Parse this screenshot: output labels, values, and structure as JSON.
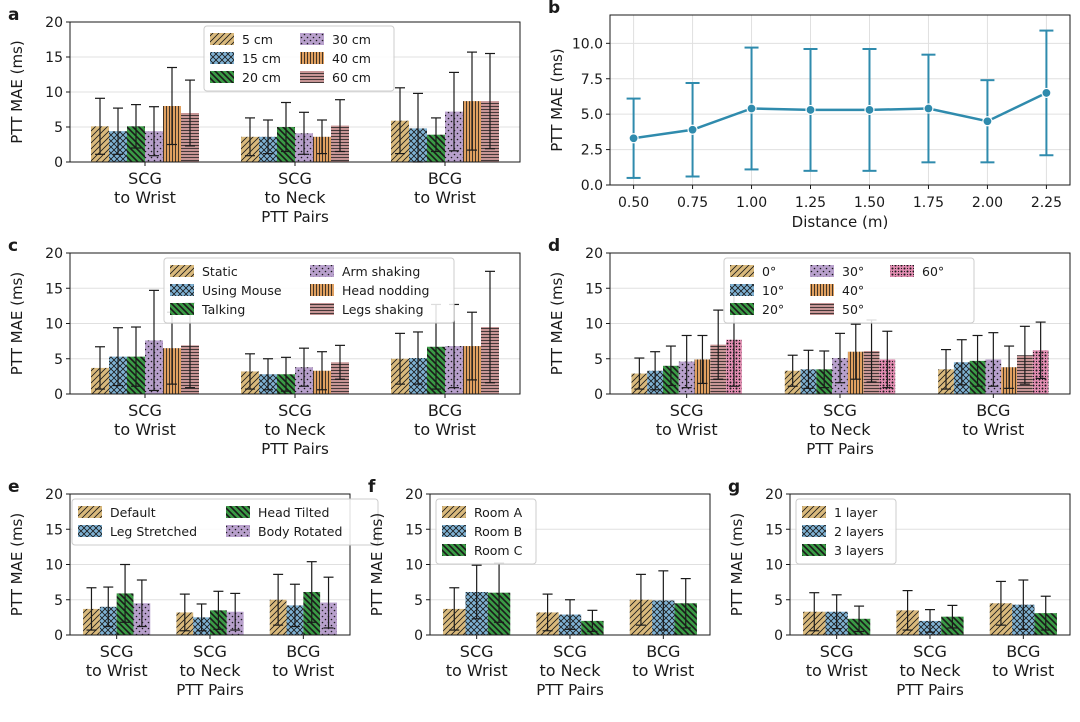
{
  "colors": {
    "tan": "#d9b97c",
    "blue": "#7fb2d4",
    "green": "#3a9a45",
    "purple": "#b8a0cc",
    "orange": "#e0a060",
    "rose": "#c79595",
    "pink": "#e58fb4",
    "line": "#2f8bad"
  },
  "chart_data": [
    {
      "id": "a",
      "panel_label": "a",
      "type": "bar",
      "ylabel": "PTT MAE (ms)",
      "xlabel": "PTT Pairs",
      "ylim": [
        0,
        20
      ],
      "yticks": [
        0,
        5,
        10,
        15,
        20
      ],
      "grid": true,
      "legend_position": "top-center",
      "legend_cols": 2,
      "categories": [
        [
          "SCG",
          "to Wrist"
        ],
        [
          "SCG",
          "to Neck"
        ],
        [
          "BCG",
          "to Wrist"
        ]
      ],
      "series": [
        {
          "name": "5 cm",
          "color": "tan",
          "pattern": "diag",
          "values": [
            5.1,
            3.6,
            5.9
          ],
          "errors": [
            4.0,
            2.7,
            4.7
          ]
        },
        {
          "name": "15 cm",
          "color": "blue",
          "pattern": "cross",
          "values": [
            4.4,
            3.6,
            4.8
          ],
          "errors": [
            3.3,
            2.4,
            5.0
          ]
        },
        {
          "name": "20 cm",
          "color": "green",
          "pattern": "back",
          "values": [
            5.1,
            5.0,
            3.9
          ],
          "errors": [
            3.1,
            3.5,
            2.4
          ]
        },
        {
          "name": "30 cm",
          "color": "purple",
          "pattern": "dots",
          "values": [
            4.4,
            4.1,
            7.2
          ],
          "errors": [
            3.5,
            3.0,
            5.6
          ]
        },
        {
          "name": "40 cm",
          "color": "orange",
          "pattern": "vert",
          "values": [
            8.0,
            3.6,
            8.7
          ],
          "errors": [
            5.5,
            2.4,
            7.0
          ]
        },
        {
          "name": "60 cm",
          "color": "rose",
          "pattern": "horiz",
          "values": [
            7.0,
            5.2,
            8.7
          ],
          "errors": [
            4.7,
            3.7,
            6.8
          ]
        }
      ]
    },
    {
      "id": "b",
      "panel_label": "b",
      "type": "line",
      "ylabel": "PTT MAE (ms)",
      "xlabel": "Distance (m)",
      "ylim": [
        0,
        12
      ],
      "yticks": [
        0.0,
        2.5,
        5.0,
        7.5,
        10.0
      ],
      "ytick_labels": [
        "0.0",
        "2.5",
        "5.0",
        "7.5",
        "10.0"
      ],
      "xlim": [
        0.4,
        2.35
      ],
      "xticks": [
        0.5,
        0.75,
        1.0,
        1.25,
        1.5,
        1.75,
        2.0,
        2.25
      ],
      "xtick_labels": [
        "0.50",
        "0.75",
        "1.00",
        "1.25",
        "1.50",
        "1.75",
        "2.00",
        "2.25"
      ],
      "grid": true,
      "x": [
        0.5,
        0.75,
        1.0,
        1.25,
        1.5,
        1.75,
        2.0,
        2.25
      ],
      "y": [
        3.3,
        3.9,
        5.4,
        5.3,
        5.3,
        5.4,
        4.5,
        6.5
      ],
      "errors": [
        2.8,
        3.3,
        4.3,
        4.3,
        4.3,
        3.8,
        2.9,
        4.4
      ]
    },
    {
      "id": "c",
      "panel_label": "c",
      "type": "bar",
      "ylabel": "PTT MAE (ms)",
      "xlabel": "PTT Pairs",
      "ylim": [
        0,
        20
      ],
      "yticks": [
        0,
        5,
        10,
        15,
        20
      ],
      "grid": true,
      "legend_position": "top-center",
      "legend_cols": 2,
      "categories": [
        [
          "SCG",
          "to Wrist"
        ],
        [
          "SCG",
          "to Neck"
        ],
        [
          "BCG",
          "to Wrist"
        ]
      ],
      "series": [
        {
          "name": "Static",
          "color": "tan",
          "pattern": "diag",
          "values": [
            3.7,
            3.2,
            5.0
          ],
          "errors": [
            3.0,
            2.5,
            3.6
          ]
        },
        {
          "name": "Using Mouse",
          "color": "blue",
          "pattern": "cross",
          "values": [
            5.3,
            2.8,
            5.1
          ],
          "errors": [
            4.1,
            2.2,
            3.7
          ]
        },
        {
          "name": "Talking",
          "color": "green",
          "pattern": "back",
          "values": [
            5.3,
            2.8,
            6.7
          ],
          "errors": [
            4.2,
            2.4,
            6.0
          ]
        },
        {
          "name": "Arm shaking",
          "color": "purple",
          "pattern": "dots",
          "values": [
            7.6,
            3.8,
            6.8
          ],
          "errors": [
            7.1,
            2.7,
            5.9
          ]
        },
        {
          "name": "Head nodding",
          "color": "orange",
          "pattern": "vert",
          "values": [
            6.5,
            3.3,
            6.8
          ],
          "errors": [
            5.1,
            2.7,
            4.8
          ]
        },
        {
          "name": "Legs shaking",
          "color": "rose",
          "pattern": "horiz",
          "values": [
            6.9,
            4.5,
            9.5
          ],
          "errors": [
            6.0,
            2.4,
            7.9
          ]
        }
      ]
    },
    {
      "id": "d",
      "panel_label": "d",
      "type": "bar",
      "ylabel": "PTT MAE (ms)",
      "xlabel": "PTT Pairs",
      "ylim": [
        0,
        20
      ],
      "yticks": [
        0,
        5,
        10,
        15,
        20
      ],
      "grid": true,
      "legend_position": "top-center",
      "legend_cols": 3,
      "categories": [
        [
          "SCG",
          "to Wrist"
        ],
        [
          "SCG",
          "to Neck"
        ],
        [
          "BCG",
          "to Wrist"
        ]
      ],
      "series": [
        {
          "name": "0°",
          "color": "tan",
          "pattern": "diag",
          "values": [
            2.9,
            3.3,
            3.5
          ],
          "errors": [
            2.2,
            2.2,
            2.8
          ]
        },
        {
          "name": "10°",
          "color": "blue",
          "pattern": "cross",
          "values": [
            3.3,
            3.5,
            4.5
          ],
          "errors": [
            2.7,
            2.7,
            3.2
          ]
        },
        {
          "name": "20°",
          "color": "green",
          "pattern": "back",
          "values": [
            4.0,
            3.5,
            4.7
          ],
          "errors": [
            2.8,
            2.6,
            3.6
          ]
        },
        {
          "name": "30°",
          "color": "purple",
          "pattern": "dots",
          "values": [
            4.6,
            5.1,
            4.9
          ],
          "errors": [
            3.7,
            3.5,
            3.8
          ]
        },
        {
          "name": "40°",
          "color": "orange",
          "pattern": "vert",
          "values": [
            4.9,
            6.0,
            3.8
          ],
          "errors": [
            3.4,
            3.9,
            3.0
          ]
        },
        {
          "name": "50°",
          "color": "rose",
          "pattern": "horiz",
          "values": [
            7.0,
            6.1,
            5.5
          ],
          "errors": [
            4.9,
            4.4,
            4.1
          ]
        },
        {
          "name": "60°",
          "color": "pink",
          "pattern": "dense",
          "values": [
            7.7,
            4.9,
            6.2
          ],
          "errors": [
            6.6,
            4.0,
            4.0
          ]
        }
      ]
    },
    {
      "id": "e",
      "panel_label": "e",
      "type": "bar",
      "ylabel": "PTT MAE (ms)",
      "xlabel": "PTT Pairs",
      "ylim": [
        0,
        20
      ],
      "yticks": [
        0,
        5,
        10,
        15,
        20
      ],
      "grid": true,
      "legend_position": "top-center",
      "legend_cols": 2,
      "categories": [
        [
          "SCG",
          "to Wrist"
        ],
        [
          "SCG",
          "to Neck"
        ],
        [
          "BCG",
          "to Wrist"
        ]
      ],
      "series": [
        {
          "name": "Default",
          "color": "tan",
          "pattern": "diag",
          "values": [
            3.7,
            3.2,
            5.0
          ],
          "errors": [
            3.0,
            2.6,
            3.6
          ]
        },
        {
          "name": "Leg Stretched",
          "color": "blue",
          "pattern": "cross",
          "values": [
            4.0,
            2.5,
            4.2
          ],
          "errors": [
            2.8,
            1.9,
            3.0
          ]
        },
        {
          "name": "Head Tilted",
          "color": "green",
          "pattern": "back",
          "values": [
            5.9,
            3.5,
            6.1
          ],
          "errors": [
            4.1,
            2.7,
            4.3
          ]
        },
        {
          "name": "Body Rotated",
          "color": "purple",
          "pattern": "dots",
          "values": [
            4.5,
            3.3,
            4.6
          ],
          "errors": [
            3.3,
            2.6,
            3.6
          ]
        }
      ]
    },
    {
      "id": "f",
      "panel_label": "f",
      "type": "bar",
      "ylabel": "PTT MAE (ms)",
      "xlabel": "PTT Pairs",
      "ylim": [
        0,
        20
      ],
      "yticks": [
        0,
        5,
        10,
        15,
        20
      ],
      "grid": true,
      "legend_position": "top-left",
      "legend_cols": 1,
      "categories": [
        [
          "SCG",
          "to Wrist"
        ],
        [
          "SCG",
          "to Neck"
        ],
        [
          "BCG",
          "to Wrist"
        ]
      ],
      "series": [
        {
          "name": "Room A",
          "color": "tan",
          "pattern": "diag",
          "values": [
            3.7,
            3.2,
            5.0
          ],
          "errors": [
            3.0,
            2.6,
            3.6
          ]
        },
        {
          "name": "Room B",
          "color": "blue",
          "pattern": "cross",
          "values": [
            6.1,
            2.9,
            4.9
          ],
          "errors": [
            3.8,
            2.1,
            4.2
          ]
        },
        {
          "name": "Room C",
          "color": "green",
          "pattern": "back",
          "values": [
            6.0,
            2.0,
            4.5
          ],
          "errors": [
            4.2,
            1.5,
            3.5
          ]
        }
      ]
    },
    {
      "id": "g",
      "panel_label": "g",
      "type": "bar",
      "ylabel": "PTT MAE (ms)",
      "xlabel": "PTT Pairs",
      "ylim": [
        0,
        20
      ],
      "yticks": [
        0,
        5,
        10,
        15,
        20
      ],
      "grid": true,
      "legend_position": "top-left",
      "legend_cols": 1,
      "categories": [
        [
          "SCG",
          "to Wrist"
        ],
        [
          "SCG",
          "to Neck"
        ],
        [
          "BCG",
          "to Wrist"
        ]
      ],
      "series": [
        {
          "name": "1 layer",
          "color": "tan",
          "pattern": "diag",
          "values": [
            3.3,
            3.5,
            4.5
          ],
          "errors": [
            2.7,
            2.8,
            3.1
          ]
        },
        {
          "name": "2 layers",
          "color": "blue",
          "pattern": "cross",
          "values": [
            3.3,
            2.0,
            4.3
          ],
          "errors": [
            2.4,
            1.6,
            3.5
          ]
        },
        {
          "name": "3 layers",
          "color": "green",
          "pattern": "back",
          "values": [
            2.3,
            2.6,
            3.1
          ],
          "errors": [
            1.8,
            1.6,
            2.4
          ]
        }
      ]
    }
  ]
}
